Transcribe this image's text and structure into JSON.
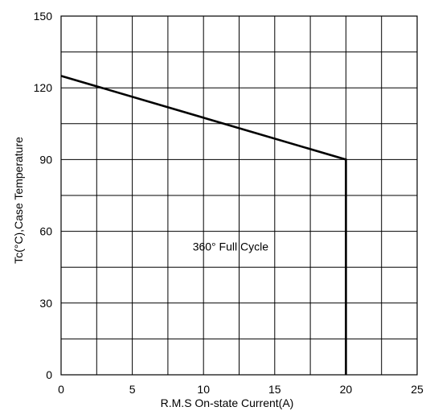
{
  "chart_data": {
    "type": "line",
    "title": "",
    "xlabel": "R.M.S On-state Current(A)",
    "ylabel": "Tc(°C),Case Temperature",
    "xlim": [
      0,
      25
    ],
    "ylim": [
      0,
      150
    ],
    "x_ticks": [
      0,
      5,
      10,
      15,
      20,
      25
    ],
    "x_tick_labels": [
      "0",
      "5",
      "10",
      "15",
      "20",
      "25"
    ],
    "y_ticks": [
      0,
      30,
      60,
      90,
      120,
      150
    ],
    "y_tick_labels": [
      "0",
      "30",
      "60",
      "90",
      "120",
      "150"
    ],
    "x_grid_step": 2.5,
    "y_grid_step": 15,
    "grid": true,
    "legend": "none",
    "series": [
      {
        "x": [
          0,
          20,
          20
        ],
        "y": [
          125,
          90,
          0
        ]
      }
    ],
    "annotations": [
      {
        "text": "360° Full Cycle",
        "x": 11.9,
        "y": 52
      }
    ]
  }
}
